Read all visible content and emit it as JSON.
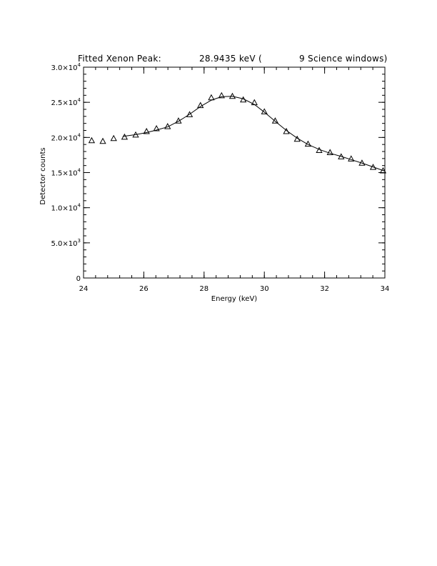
{
  "chart_data": {
    "type": "scatter",
    "title_parts": [
      "Fitted Xenon Peak:",
      "28.9435 keV (",
      "9 Science windows)"
    ],
    "xlabel": "Energy (keV)",
    "ylabel": "Detector counts",
    "xlim": [
      24,
      34
    ],
    "ylim": [
      0,
      30000
    ],
    "x_ticks": [
      24,
      26,
      28,
      30,
      32,
      34
    ],
    "x_tick_labels": [
      "24",
      "26",
      "28",
      "30",
      "32",
      "34"
    ],
    "y_ticks": [
      {
        "value": 0,
        "mant": "0",
        "exp": ""
      },
      {
        "value": 5000,
        "mant": "5.0×10",
        "exp": "3"
      },
      {
        "value": 10000,
        "mant": "1.0×10",
        "exp": "4"
      },
      {
        "value": 15000,
        "mant": "1.5×10",
        "exp": "4"
      },
      {
        "value": 20000,
        "mant": "2.0×10",
        "exp": "4"
      },
      {
        "value": 25000,
        "mant": "2.5×10",
        "exp": "4"
      },
      {
        "value": 30000,
        "mant": "3.0×10",
        "exp": "4"
      }
    ],
    "grid": false,
    "series": [
      {
        "marker": "triangle",
        "x": [
          24.27,
          24.64,
          25.0,
          25.36,
          25.73,
          26.09,
          26.42,
          26.79,
          27.15,
          27.52,
          27.88,
          28.24,
          28.58,
          28.94,
          29.3,
          29.67,
          30.0,
          30.36,
          30.73,
          31.09,
          31.45,
          31.82,
          32.18,
          32.55,
          32.88,
          33.24,
          33.61,
          33.94
        ],
        "y": [
          19500,
          19400,
          19800,
          20000,
          20300,
          20800,
          21200,
          21500,
          22300,
          23200,
          24500,
          25600,
          25900,
          25800,
          25300,
          24900,
          23600,
          22300,
          20800,
          19700,
          19000,
          18100,
          17800,
          17200,
          16900,
          16300,
          15700,
          15200
        ]
      },
      {
        "marker": "line",
        "x": [
          25.3,
          25.73,
          26.09,
          26.42,
          26.79,
          27.15,
          27.52,
          27.88,
          28.24,
          28.58,
          28.94,
          29.3,
          29.67,
          30.0,
          30.36,
          30.73,
          31.09,
          31.45,
          31.82,
          32.18,
          32.55,
          32.88,
          33.24,
          33.61,
          34.0
        ],
        "y": [
          20150,
          20400,
          20700,
          21050,
          21500,
          22300,
          23300,
          24400,
          25300,
          25800,
          25850,
          25500,
          24700,
          23600,
          22300,
          21000,
          19900,
          19000,
          18300,
          17750,
          17300,
          16850,
          16350,
          15800,
          15200
        ]
      }
    ]
  }
}
